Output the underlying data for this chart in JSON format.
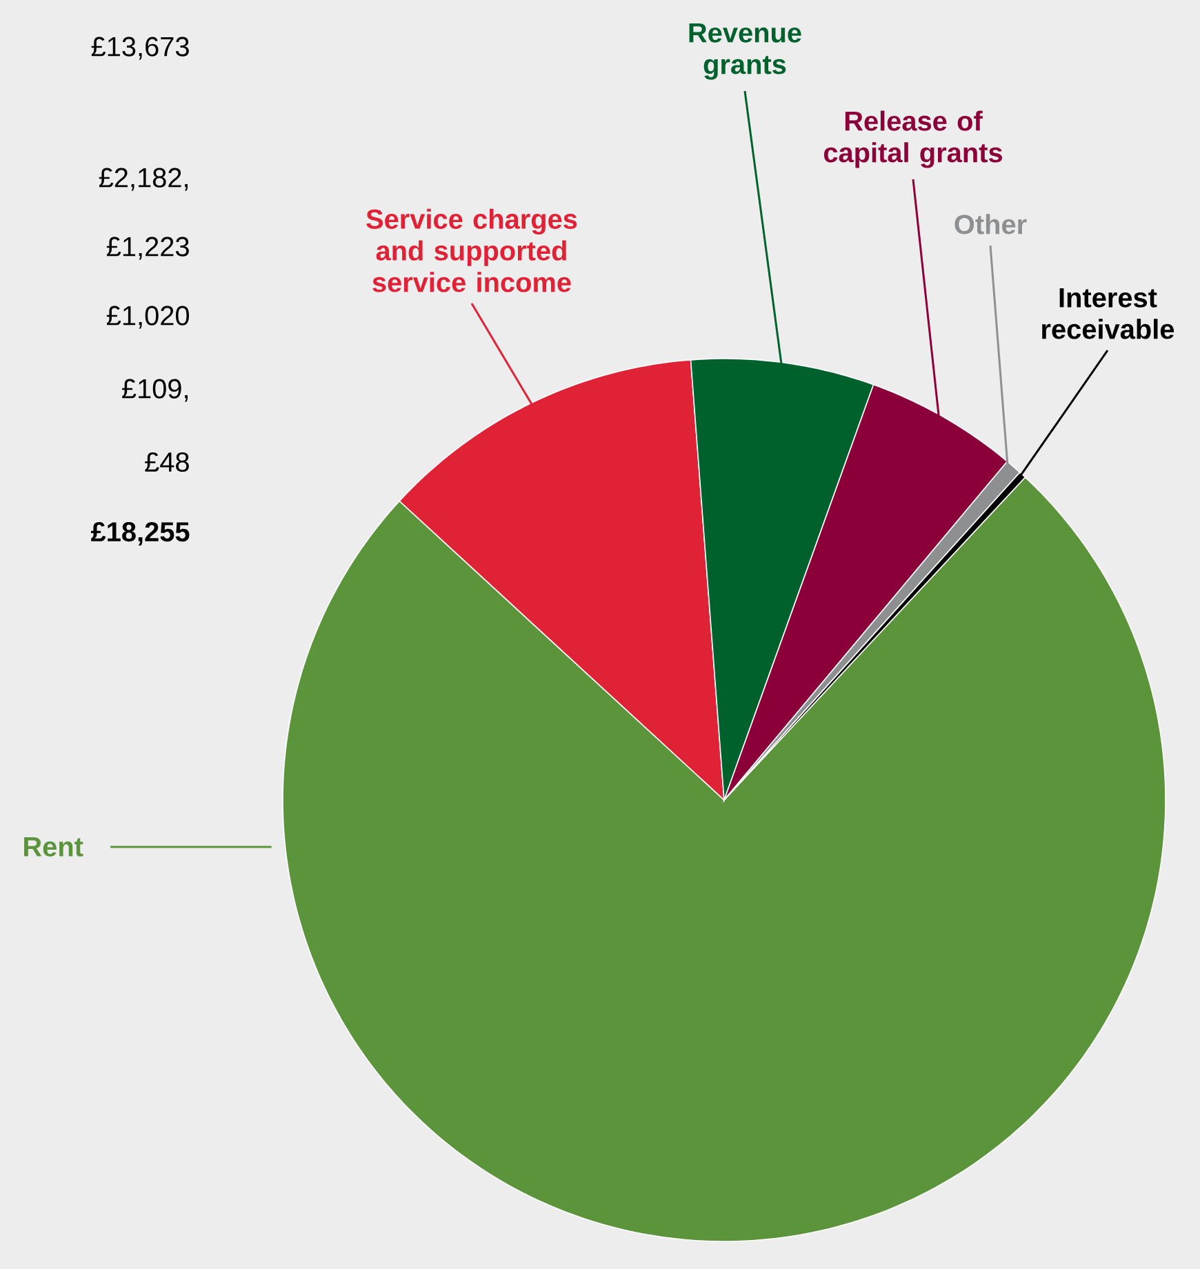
{
  "chart_data": {
    "type": "pie",
    "categories": [
      "Rent",
      "Service charges and supported service income",
      "Revenue grants",
      "Release of capital grants",
      "Other",
      "Interest receivable"
    ],
    "values": [
      74.9,
      11.95,
      6.7,
      5.59,
      0.6,
      0.26
    ],
    "colors": [
      "#5c943c",
      "#e02236",
      "#00612c",
      "#8c003a",
      "#8e8f91",
      "#000000"
    ],
    "annotations": [
      "£13,673",
      "£2,182,",
      "£1,223",
      "£1,020",
      "£109,",
      "£48",
      "£18,255"
    ]
  }
}
